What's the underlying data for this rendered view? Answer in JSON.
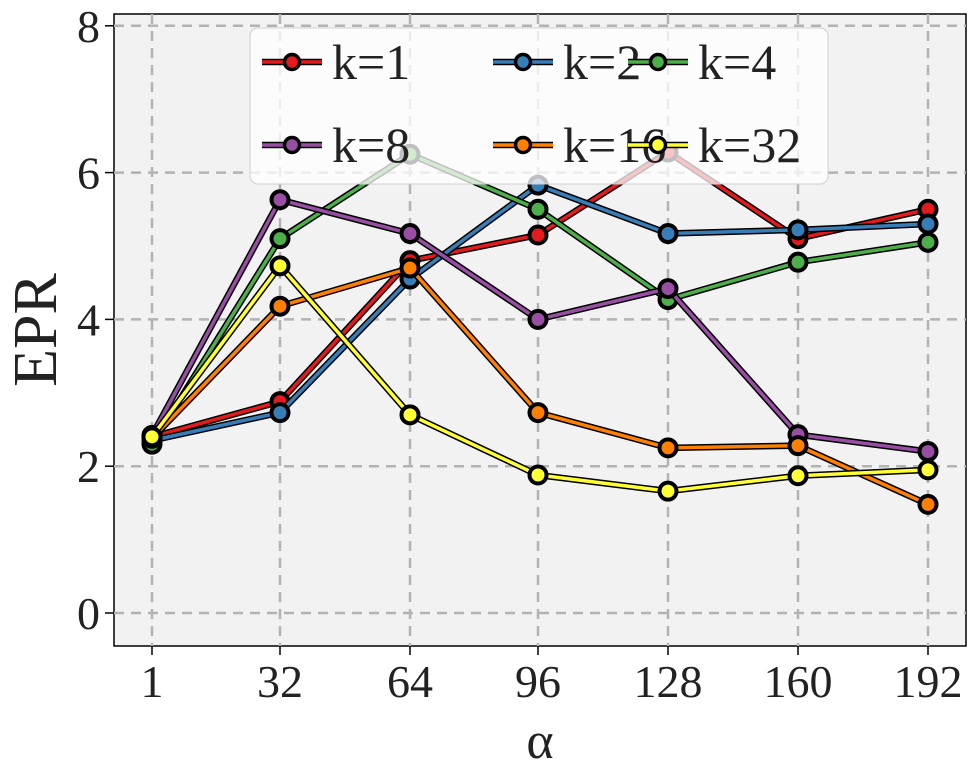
{
  "chart_data": {
    "type": "line",
    "title": "",
    "xlabel": "α",
    "ylabel": "EPR",
    "x": [
      1,
      32,
      64,
      96,
      128,
      160,
      192
    ],
    "x_tick_labels": [
      "1",
      "32",
      "64",
      "96",
      "128",
      "160",
      "192"
    ],
    "y_ticks": [
      0,
      2,
      4,
      6,
      8
    ],
    "y_tick_labels": [
      "0",
      "2",
      "4",
      "6",
      "8"
    ],
    "ylim": [
      -0.45,
      8.2
    ],
    "grid": true,
    "legend_placement": "top-center",
    "series": [
      {
        "name": "k=1",
        "color": "#e41a1c",
        "values": [
          2.4,
          2.88,
          4.8,
          5.15,
          6.28,
          5.1,
          5.5
        ]
      },
      {
        "name": "k=2",
        "color": "#377eb8",
        "values": [
          2.35,
          2.73,
          4.55,
          5.83,
          5.17,
          5.22,
          5.3
        ]
      },
      {
        "name": "k=4",
        "color": "#4daf4a",
        "values": [
          2.3,
          5.1,
          6.25,
          5.5,
          4.27,
          4.78,
          5.05
        ]
      },
      {
        "name": "k=8",
        "color": "#984ea3",
        "values": [
          2.42,
          5.63,
          5.17,
          4.0,
          4.42,
          2.43,
          2.2
        ]
      },
      {
        "name": "k=16",
        "color": "#ff7f00",
        "values": [
          2.38,
          4.18,
          4.7,
          2.73,
          2.25,
          2.28,
          1.48
        ]
      },
      {
        "name": "k=32",
        "color": "#ffff33",
        "values": [
          2.4,
          4.73,
          2.7,
          1.88,
          1.66,
          1.87,
          1.95
        ]
      }
    ]
  }
}
